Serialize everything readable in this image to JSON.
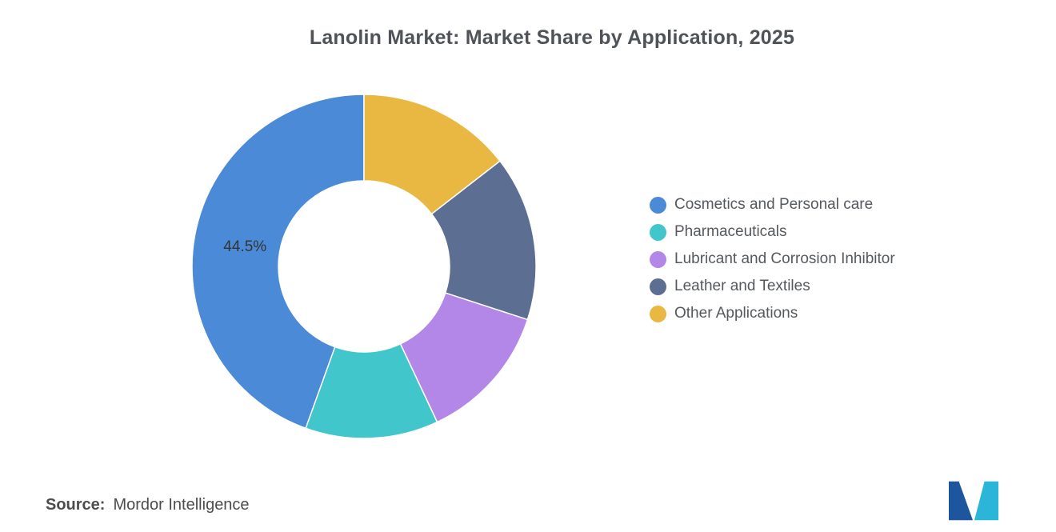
{
  "chart_data": {
    "type": "pie",
    "donut": true,
    "title": "Lanolin Market: Market Share by Application, 2025",
    "legend_position": "right",
    "start_angle": "top",
    "direction": "counterclockwise",
    "series": [
      {
        "name": "Cosmetics and Personal care",
        "value": 44.5,
        "color": "#4a8ad6",
        "label": "44.5%"
      },
      {
        "name": "Pharmaceuticals",
        "value": 12.5,
        "color": "#40c6cb"
      },
      {
        "name": "Lubricant and Corrosion Inhibitor",
        "value": 13.0,
        "color": "#b387e8"
      },
      {
        "name": "Leather and Textiles",
        "value": 15.5,
        "color": "#5c6e91"
      },
      {
        "name": "Other Applications",
        "value": 14.5,
        "color": "#e9b842"
      }
    ],
    "visible_data_labels": [
      "44.5%"
    ]
  },
  "source": {
    "label": "Source:",
    "text": "Mordor Intelligence"
  },
  "branding": {
    "logo_alt": "Mordor Intelligence logo",
    "logo_colors": {
      "navy": "#1d559f",
      "teal": "#2bb6d9"
    }
  }
}
